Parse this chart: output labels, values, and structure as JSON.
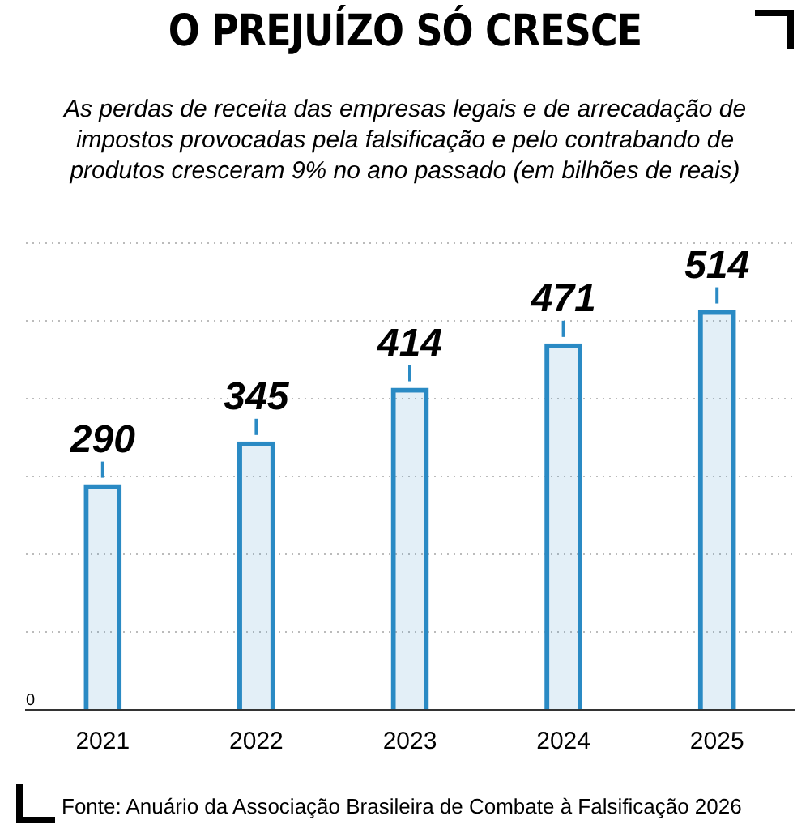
{
  "chart_data": {
    "type": "bar",
    "title": "O PREJUÍZO SÓ CRESCE",
    "subtitle": "As perdas de receita das empresas legais e de arrecadação de impostos provocadas pela falsificação e pelo contrabando de produtos cresceram 9% no ano passado (em bilhões de reais)",
    "categories": [
      "2021",
      "2022",
      "2023",
      "2024",
      "2025"
    ],
    "values": [
      290,
      345,
      414,
      471,
      514
    ],
    "color": "#2a8ac4",
    "ylim": [
      0,
      600
    ],
    "yticks": [
      {
        "value": 0,
        "label": null
      },
      {
        "value": 100,
        "label": null
      },
      {
        "value": 200,
        "label": null
      },
      {
        "value": 300,
        "label": null
      },
      {
        "value": 400,
        "label": null
      },
      {
        "value": 500,
        "label": null
      },
      {
        "value": 600,
        "label": null
      }
    ],
    "grid": "y",
    "data_labels": true,
    "annotations": [
      "0",
      "Fonte: Anuário da Associação Brasileira de Combate à Falsificação 2026"
    ]
  }
}
